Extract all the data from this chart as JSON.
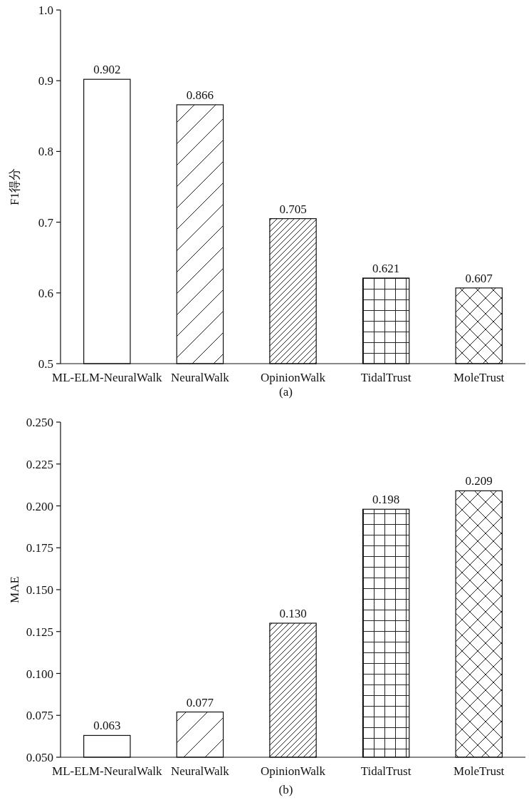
{
  "chart_data": [
    {
      "type": "bar",
      "ylabel": "F1得分",
      "categories": [
        "ML-ELM-NeuralWalk",
        "NeuralWalk",
        "OpinionWalk",
        "TidalTrust",
        "MoleTrust"
      ],
      "values": [
        0.902,
        0.866,
        0.705,
        0.621,
        0.607
      ],
      "value_labels": [
        "0.902",
        "0.866",
        "0.705",
        "0.621",
        "0.607"
      ],
      "colors": [
        "#ffffff",
        "#ffffff",
        "#ffffff",
        "#ffffff",
        "#ffffff"
      ],
      "ylim": [
        0.5,
        1.0
      ],
      "yticks": [
        0.5,
        0.6,
        0.7,
        0.8,
        0.9,
        {
          "value": 1.0,
          "label": "1.0"
        }
      ],
      "annotations": [
        "(a)"
      ]
    },
    {
      "type": "bar",
      "ylabel": "MAE",
      "categories": [
        "ML-ELM-NeuralWalk",
        "NeuralWalk",
        "OpinionWalk",
        "TidalTrust",
        "MoleTrust"
      ],
      "values": [
        0.063,
        0.077,
        0.13,
        0.198,
        0.209
      ],
      "value_labels": [
        "0.063",
        "0.077",
        "0.130",
        "0.198",
        "0.209"
      ],
      "colors": [
        "#ffffff",
        "#ffffff",
        "#ffffff",
        "#ffffff",
        "#ffffff"
      ],
      "ylim": [
        0.05,
        0.25
      ],
      "yticks": [
        {
          "value": 0.05,
          "label": "0.050"
        },
        {
          "value": 0.075,
          "label": "0.075"
        },
        {
          "value": 0.1,
          "label": "0.100"
        },
        {
          "value": 0.125,
          "label": "0.125"
        },
        {
          "value": 0.15,
          "label": "0.150"
        },
        {
          "value": 0.175,
          "label": "0.175"
        },
        {
          "value": 0.2,
          "label": "0.200"
        },
        {
          "value": 0.225,
          "label": "0.225"
        },
        {
          "value": 0.25,
          "label": "0.250"
        }
      ],
      "annotations": [
        "(b)"
      ]
    }
  ]
}
